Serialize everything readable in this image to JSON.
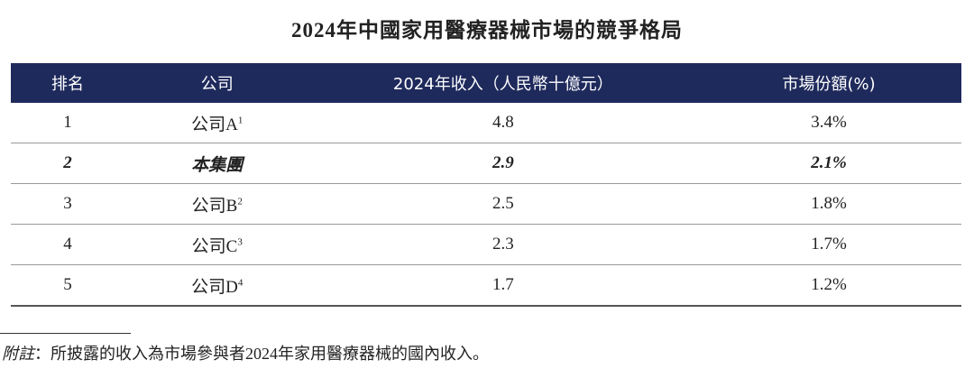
{
  "title": "2024年中國家用醫療器械市場的競爭格局",
  "table": {
    "header": [
      "排名",
      "公司",
      "2024年收入（人民幣十億元）",
      "市場份額(%)"
    ],
    "rows": [
      [
        {
          "rank": "1"
        },
        {
          "name": "公司A",
          "note": "1"
        },
        "4.8",
        "3.4%"
      ],
      [
        {
          "rank": "2"
        },
        {
          "name": "本集團"
        },
        "2.9",
        "2.1%"
      ],
      [
        {
          "rank": "3"
        },
        {
          "name": "公司B",
          "note": "2"
        },
        "2.5",
        "1.8%"
      ],
      [
        {
          "rank": "4"
        },
        {
          "name": "公司C",
          "note": "3"
        },
        "2.3",
        "1.7%"
      ],
      [
        {
          "rank": "5"
        },
        {
          "name": "公司D",
          "note": "4"
        },
        "1.7",
        "1.2%"
      ]
    ]
  },
  "footnote": {
    "label": "附註",
    "text": "：所披露的收入為市場參與者2024年家用醫療器械的國內收入。"
  }
}
